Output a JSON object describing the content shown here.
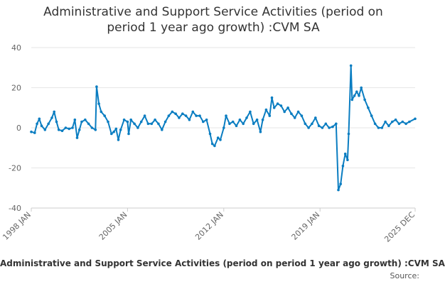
{
  "chart_title_line1": "Administrative and Support Service Activities (period on",
  "chart_title_line2": "period 1 year ago growth) :CVM SA",
  "legend_label": "Administrative and Support Service Activities (period on period 1 year ago growth) :CVM SA",
  "source_label": "Source:",
  "colors": {
    "series": "#0a7dc1",
    "grid": "#e6e6e6",
    "axis_text": "#666666"
  },
  "chart_data": {
    "type": "line",
    "title": "Administrative and Support Service Activities (period on period 1 year ago growth) :CVM SA",
    "xlabel": "",
    "ylabel": "",
    "ylim": [
      -40,
      40
    ],
    "yticks": [
      -40,
      -20,
      0,
      20,
      40
    ],
    "xticks": [
      "1998 JAN",
      "2005 JAN",
      "2012 JAN",
      "2019 JAN",
      "2025 DEC"
    ],
    "xrange": [
      "1998-01",
      "2025-12"
    ],
    "grid": true,
    "legend_position": "bottom",
    "series": [
      {
        "name": "Administrative and Support Service Activities (period on period 1 year ago growth) :CVM SA",
        "color": "#0a7dc1",
        "points": [
          [
            "1998-01",
            -2
          ],
          [
            "1998-04",
            -2.5
          ],
          [
            "1998-06",
            2
          ],
          [
            "1998-08",
            4.5
          ],
          [
            "1998-10",
            1
          ],
          [
            "1999-01",
            -1
          ],
          [
            "1999-04",
            2
          ],
          [
            "1999-07",
            5
          ],
          [
            "1999-09",
            8
          ],
          [
            "1999-11",
            3
          ],
          [
            "2000-01",
            -1
          ],
          [
            "2000-04",
            -1.5
          ],
          [
            "2000-07",
            0
          ],
          [
            "2000-10",
            -0.5
          ],
          [
            "2001-01",
            0
          ],
          [
            "2001-03",
            4
          ],
          [
            "2001-05",
            -5
          ],
          [
            "2001-07",
            -1
          ],
          [
            "2001-09",
            3
          ],
          [
            "2001-12",
            4
          ],
          [
            "2002-03",
            2
          ],
          [
            "2002-06",
            0
          ],
          [
            "2002-09",
            -1
          ],
          [
            "2002-10",
            20.5
          ],
          [
            "2002-12",
            12
          ],
          [
            "2003-02",
            8
          ],
          [
            "2003-05",
            6
          ],
          [
            "2003-08",
            3
          ],
          [
            "2003-11",
            -3
          ],
          [
            "2004-01",
            -2
          ],
          [
            "2004-03",
            -0.5
          ],
          [
            "2004-05",
            -6
          ],
          [
            "2004-07",
            -1
          ],
          [
            "2004-10",
            4
          ],
          [
            "2005-01",
            3
          ],
          [
            "2005-02",
            -3
          ],
          [
            "2005-04",
            4
          ],
          [
            "2005-07",
            2
          ],
          [
            "2005-10",
            0
          ],
          [
            "2006-01",
            3
          ],
          [
            "2006-04",
            6
          ],
          [
            "2006-07",
            2
          ],
          [
            "2006-10",
            2
          ],
          [
            "2007-01",
            4
          ],
          [
            "2007-04",
            2
          ],
          [
            "2007-07",
            -1
          ],
          [
            "2007-10",
            3
          ],
          [
            "2008-01",
            6
          ],
          [
            "2008-04",
            8
          ],
          [
            "2008-07",
            7
          ],
          [
            "2008-10",
            5
          ],
          [
            "2009-01",
            7
          ],
          [
            "2009-04",
            6
          ],
          [
            "2009-07",
            4
          ],
          [
            "2009-10",
            8
          ],
          [
            "2010-01",
            6
          ],
          [
            "2010-04",
            6
          ],
          [
            "2010-07",
            3
          ],
          [
            "2010-10",
            4
          ],
          [
            "2011-01",
            -3
          ],
          [
            "2011-03",
            -8
          ],
          [
            "2011-05",
            -9
          ],
          [
            "2011-08",
            -5
          ],
          [
            "2011-10",
            -6
          ],
          [
            "2012-01",
            0
          ],
          [
            "2012-03",
            6
          ],
          [
            "2012-06",
            2
          ],
          [
            "2012-09",
            3
          ],
          [
            "2012-12",
            1
          ],
          [
            "2013-03",
            4
          ],
          [
            "2013-06",
            2
          ],
          [
            "2013-09",
            5
          ],
          [
            "2013-12",
            8
          ],
          [
            "2014-03",
            2
          ],
          [
            "2014-06",
            4
          ],
          [
            "2014-09",
            -2
          ],
          [
            "2014-11",
            4
          ],
          [
            "2015-02",
            9
          ],
          [
            "2015-05",
            6
          ],
          [
            "2015-07",
            15
          ],
          [
            "2015-09",
            10
          ],
          [
            "2015-12",
            12
          ],
          [
            "2016-03",
            11
          ],
          [
            "2016-06",
            8
          ],
          [
            "2016-09",
            10
          ],
          [
            "2016-12",
            7
          ],
          [
            "2017-03",
            5
          ],
          [
            "2017-06",
            8
          ],
          [
            "2017-09",
            6
          ],
          [
            "2017-12",
            2
          ],
          [
            "2018-03",
            0
          ],
          [
            "2018-06",
            2
          ],
          [
            "2018-09",
            5
          ],
          [
            "2018-12",
            1
          ],
          [
            "2019-03",
            0
          ],
          [
            "2019-06",
            2
          ],
          [
            "2019-09",
            0
          ],
          [
            "2019-12",
            0.5
          ],
          [
            "2020-03",
            2
          ],
          [
            "2020-05",
            -31
          ],
          [
            "2020-07",
            -28
          ],
          [
            "2020-09",
            -19
          ],
          [
            "2020-11",
            -13
          ],
          [
            "2021-01",
            -16
          ],
          [
            "2021-02",
            -3
          ],
          [
            "2021-04",
            31
          ],
          [
            "2021-05",
            14
          ],
          [
            "2021-07",
            16
          ],
          [
            "2021-09",
            18
          ],
          [
            "2021-11",
            16
          ],
          [
            "2022-01",
            20
          ],
          [
            "2022-04",
            14
          ],
          [
            "2022-07",
            10
          ],
          [
            "2022-10",
            6
          ],
          [
            "2023-01",
            2
          ],
          [
            "2023-04",
            0
          ],
          [
            "2023-07",
            0
          ],
          [
            "2023-10",
            3
          ],
          [
            "2024-01",
            1
          ],
          [
            "2024-04",
            3
          ],
          [
            "2024-07",
            4
          ],
          [
            "2024-10",
            2
          ],
          [
            "2025-01",
            3
          ],
          [
            "2025-04",
            2
          ],
          [
            "2025-07",
            3
          ],
          [
            "2025-12",
            4.5
          ]
        ]
      }
    ]
  }
}
